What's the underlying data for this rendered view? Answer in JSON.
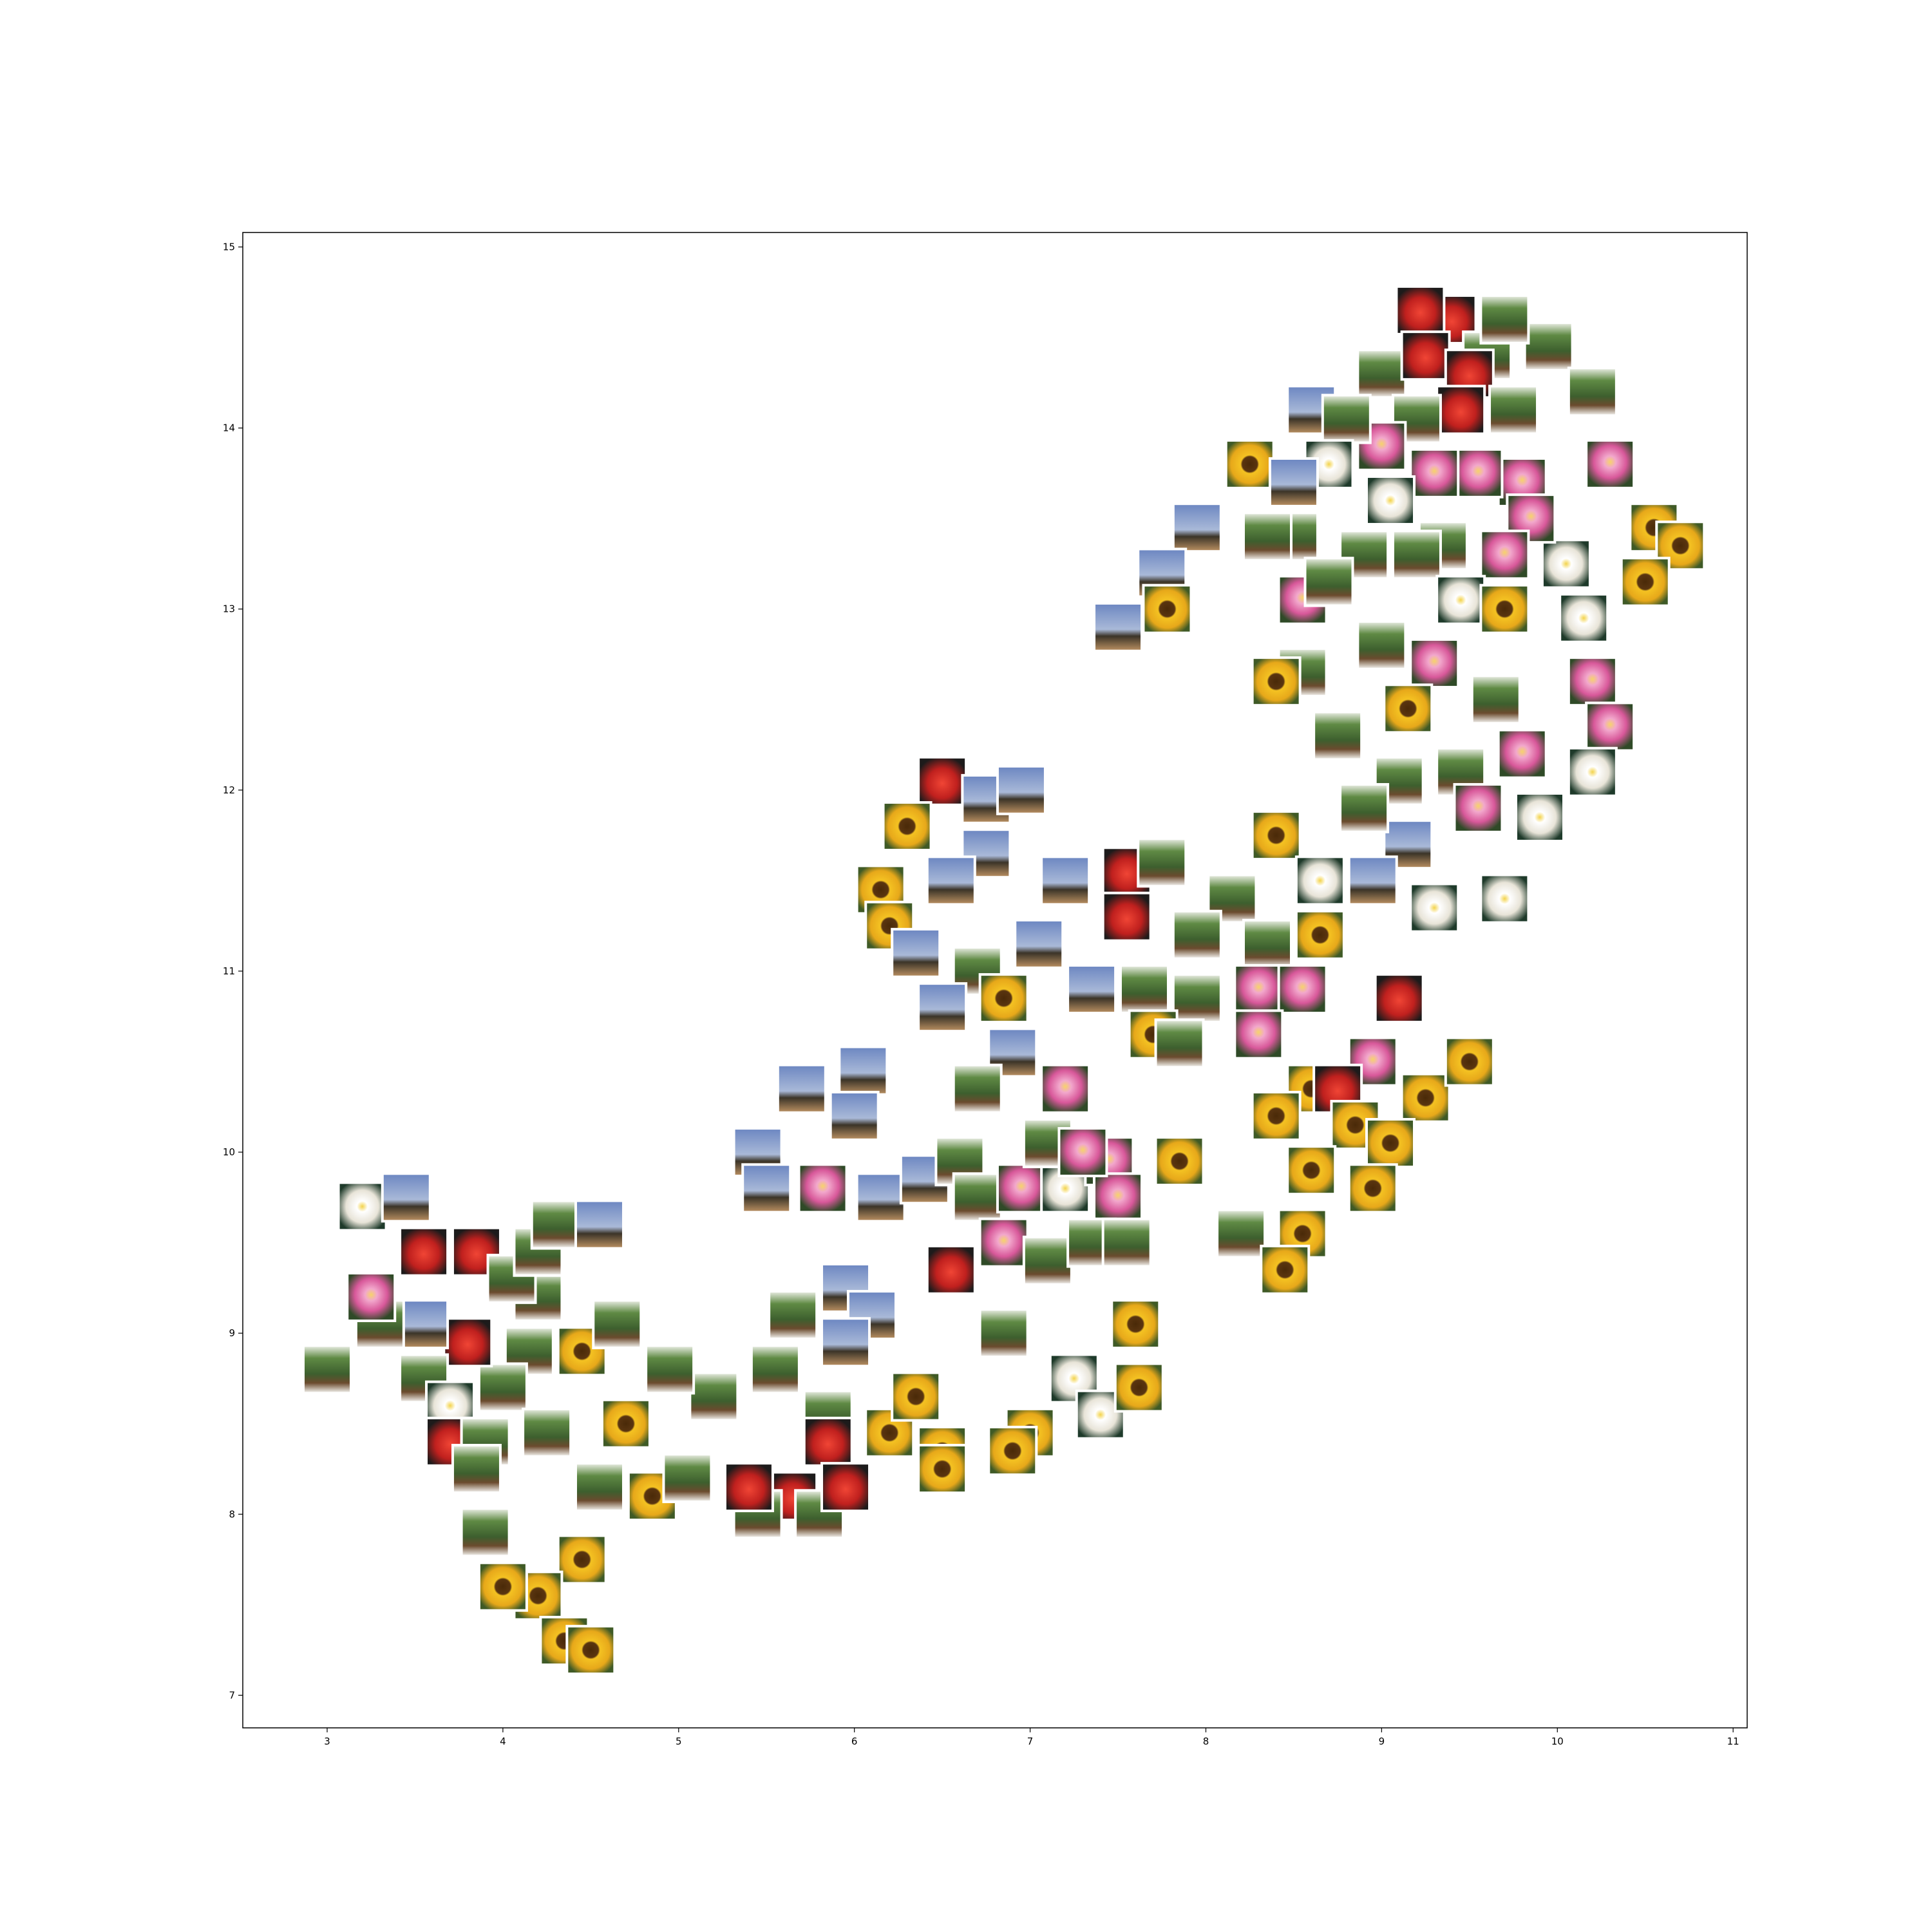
{
  "chart_data": {
    "type": "scatter",
    "title": "",
    "xlabel": "",
    "ylabel": "",
    "xlim": [
      2.52,
      11.08
    ],
    "ylim": [
      6.82,
      15.08
    ],
    "xticks": [
      3,
      4,
      5,
      6,
      7,
      8,
      9,
      10,
      11
    ],
    "yticks": [
      7,
      8,
      9,
      10,
      11,
      12,
      13,
      14,
      15
    ],
    "xtick_labels": [
      "3",
      "4",
      "5",
      "6",
      "7",
      "8",
      "9",
      "10",
      "11"
    ],
    "ytick_labels": [
      "7",
      "8",
      "9",
      "10",
      "11",
      "12",
      "13",
      "14",
      "15"
    ],
    "grid": false,
    "marker": "image-thumbnail",
    "thumbnail_categories": [
      "sunflower",
      "strawberry",
      "bonsai",
      "joshua-tree",
      "lotus",
      "water-lily"
    ],
    "category_colors": {
      "sunflower": "#e8b321",
      "strawberry": "#d42a2a",
      "bonsai": "#4f7a3a",
      "joshua-tree": "#5a6e8c",
      "lotus": "#e27bb0",
      "water-lily": "#eeeadf"
    },
    "points": [
      {
        "x": 9.4,
        "y": 14.6,
        "c": "strawberry"
      },
      {
        "x": 9.22,
        "y": 14.65,
        "c": "strawberry"
      },
      {
        "x": 9.6,
        "y": 14.4,
        "c": "bonsai"
      },
      {
        "x": 9.0,
        "y": 14.3,
        "c": "bonsai"
      },
      {
        "x": 9.25,
        "y": 14.4,
        "c": "strawberry"
      },
      {
        "x": 9.5,
        "y": 14.3,
        "c": "strawberry"
      },
      {
        "x": 9.95,
        "y": 14.45,
        "c": "bonsai"
      },
      {
        "x": 9.7,
        "y": 14.6,
        "c": "bonsai"
      },
      {
        "x": 9.75,
        "y": 14.1,
        "c": "bonsai"
      },
      {
        "x": 9.45,
        "y": 14.1,
        "c": "strawberry"
      },
      {
        "x": 9.2,
        "y": 14.05,
        "c": "bonsai"
      },
      {
        "x": 9.0,
        "y": 13.9,
        "c": "lotus"
      },
      {
        "x": 8.6,
        "y": 14.1,
        "c": "joshua-tree"
      },
      {
        "x": 8.8,
        "y": 14.05,
        "c": "bonsai"
      },
      {
        "x": 10.3,
        "y": 13.8,
        "c": "lotus"
      },
      {
        "x": 10.2,
        "y": 14.2,
        "c": "bonsai"
      },
      {
        "x": 9.8,
        "y": 13.7,
        "c": "lotus"
      },
      {
        "x": 9.55,
        "y": 13.75,
        "c": "lotus"
      },
      {
        "x": 9.3,
        "y": 13.75,
        "c": "lotus"
      },
      {
        "x": 9.05,
        "y": 13.6,
        "c": "water-lily"
      },
      {
        "x": 8.7,
        "y": 13.8,
        "c": "water-lily"
      },
      {
        "x": 8.25,
        "y": 13.8,
        "c": "sunflower"
      },
      {
        "x": 8.5,
        "y": 13.7,
        "c": "joshua-tree"
      },
      {
        "x": 10.55,
        "y": 13.45,
        "c": "sunflower"
      },
      {
        "x": 10.7,
        "y": 13.35,
        "c": "sunflower"
      },
      {
        "x": 10.5,
        "y": 13.15,
        "c": "sunflower"
      },
      {
        "x": 10.05,
        "y": 13.25,
        "c": "water-lily"
      },
      {
        "x": 9.85,
        "y": 13.5,
        "c": "lotus"
      },
      {
        "x": 9.7,
        "y": 13.3,
        "c": "lotus"
      },
      {
        "x": 9.35,
        "y": 13.35,
        "c": "bonsai"
      },
      {
        "x": 9.2,
        "y": 13.3,
        "c": "bonsai"
      },
      {
        "x": 8.9,
        "y": 13.3,
        "c": "bonsai"
      },
      {
        "x": 8.5,
        "y": 13.4,
        "c": "bonsai"
      },
      {
        "x": 7.95,
        "y": 13.45,
        "c": "joshua-tree"
      },
      {
        "x": 7.75,
        "y": 13.2,
        "c": "joshua-tree"
      },
      {
        "x": 7.5,
        "y": 12.9,
        "c": "joshua-tree"
      },
      {
        "x": 7.78,
        "y": 13.0,
        "c": "sunflower"
      },
      {
        "x": 8.35,
        "y": 13.4,
        "c": "bonsai"
      },
      {
        "x": 8.55,
        "y": 13.05,
        "c": "lotus"
      },
      {
        "x": 8.7,
        "y": 13.15,
        "c": "bonsai"
      },
      {
        "x": 9.45,
        "y": 13.05,
        "c": "water-lily"
      },
      {
        "x": 9.7,
        "y": 13.0,
        "c": "sunflower"
      },
      {
        "x": 10.15,
        "y": 12.95,
        "c": "water-lily"
      },
      {
        "x": 9.0,
        "y": 12.8,
        "c": "bonsai"
      },
      {
        "x": 9.3,
        "y": 12.7,
        "c": "lotus"
      },
      {
        "x": 8.55,
        "y": 12.65,
        "c": "bonsai"
      },
      {
        "x": 8.4,
        "y": 12.6,
        "c": "sunflower"
      },
      {
        "x": 9.15,
        "y": 12.45,
        "c": "sunflower"
      },
      {
        "x": 9.65,
        "y": 12.5,
        "c": "bonsai"
      },
      {
        "x": 10.2,
        "y": 12.6,
        "c": "lotus"
      },
      {
        "x": 10.3,
        "y": 12.35,
        "c": "lotus"
      },
      {
        "x": 9.8,
        "y": 12.2,
        "c": "lotus"
      },
      {
        "x": 10.2,
        "y": 12.1,
        "c": "water-lily"
      },
      {
        "x": 8.75,
        "y": 12.3,
        "c": "bonsai"
      },
      {
        "x": 9.1,
        "y": 12.05,
        "c": "bonsai"
      },
      {
        "x": 9.45,
        "y": 12.1,
        "c": "bonsai"
      },
      {
        "x": 9.55,
        "y": 11.9,
        "c": "lotus"
      },
      {
        "x": 9.15,
        "y": 11.7,
        "c": "joshua-tree"
      },
      {
        "x": 9.9,
        "y": 11.85,
        "c": "water-lily"
      },
      {
        "x": 8.9,
        "y": 11.9,
        "c": "bonsai"
      },
      {
        "x": 8.4,
        "y": 11.75,
        "c": "sunflower"
      },
      {
        "x": 8.95,
        "y": 11.5,
        "c": "joshua-tree"
      },
      {
        "x": 8.65,
        "y": 11.5,
        "c": "water-lily"
      },
      {
        "x": 9.7,
        "y": 11.4,
        "c": "water-lily"
      },
      {
        "x": 9.3,
        "y": 11.35,
        "c": "water-lily"
      },
      {
        "x": 6.5,
        "y": 12.05,
        "c": "strawberry"
      },
      {
        "x": 6.75,
        "y": 11.95,
        "c": "joshua-tree"
      },
      {
        "x": 6.95,
        "y": 12.0,
        "c": "joshua-tree"
      },
      {
        "x": 6.3,
        "y": 11.8,
        "c": "sunflower"
      },
      {
        "x": 6.75,
        "y": 11.65,
        "c": "joshua-tree"
      },
      {
        "x": 6.55,
        "y": 11.5,
        "c": "joshua-tree"
      },
      {
        "x": 6.15,
        "y": 11.45,
        "c": "sunflower"
      },
      {
        "x": 6.2,
        "y": 11.25,
        "c": "sunflower"
      },
      {
        "x": 6.35,
        "y": 11.1,
        "c": "joshua-tree"
      },
      {
        "x": 7.2,
        "y": 11.5,
        "c": "joshua-tree"
      },
      {
        "x": 7.55,
        "y": 11.55,
        "c": "strawberry"
      },
      {
        "x": 7.75,
        "y": 11.6,
        "c": "bonsai"
      },
      {
        "x": 7.55,
        "y": 11.3,
        "c": "strawberry"
      },
      {
        "x": 8.15,
        "y": 11.4,
        "c": "bonsai"
      },
      {
        "x": 7.95,
        "y": 11.2,
        "c": "bonsai"
      },
      {
        "x": 8.35,
        "y": 11.15,
        "c": "bonsai"
      },
      {
        "x": 7.05,
        "y": 11.15,
        "c": "joshua-tree"
      },
      {
        "x": 6.7,
        "y": 11.0,
        "c": "bonsai"
      },
      {
        "x": 6.85,
        "y": 10.85,
        "c": "sunflower"
      },
      {
        "x": 6.5,
        "y": 10.8,
        "c": "joshua-tree"
      },
      {
        "x": 7.35,
        "y": 10.9,
        "c": "joshua-tree"
      },
      {
        "x": 7.65,
        "y": 10.9,
        "c": "bonsai"
      },
      {
        "x": 7.95,
        "y": 10.85,
        "c": "bonsai"
      },
      {
        "x": 8.3,
        "y": 10.9,
        "c": "lotus"
      },
      {
        "x": 8.65,
        "y": 11.2,
        "c": "sunflower"
      },
      {
        "x": 8.55,
        "y": 10.9,
        "c": "lotus"
      },
      {
        "x": 9.1,
        "y": 10.85,
        "c": "strawberry"
      },
      {
        "x": 8.3,
        "y": 10.65,
        "c": "lotus"
      },
      {
        "x": 7.7,
        "y": 10.65,
        "c": "sunflower"
      },
      {
        "x": 7.85,
        "y": 10.6,
        "c": "bonsai"
      },
      {
        "x": 6.9,
        "y": 10.55,
        "c": "joshua-tree"
      },
      {
        "x": 7.2,
        "y": 10.35,
        "c": "lotus"
      },
      {
        "x": 6.7,
        "y": 10.35,
        "c": "bonsai"
      },
      {
        "x": 5.7,
        "y": 10.35,
        "c": "joshua-tree"
      },
      {
        "x": 6.05,
        "y": 10.45,
        "c": "joshua-tree"
      },
      {
        "x": 6.0,
        "y": 10.2,
        "c": "joshua-tree"
      },
      {
        "x": 5.45,
        "y": 10.0,
        "c": "joshua-tree"
      },
      {
        "x": 5.5,
        "y": 9.8,
        "c": "joshua-tree"
      },
      {
        "x": 5.82,
        "y": 9.8,
        "c": "lotus"
      },
      {
        "x": 6.15,
        "y": 9.75,
        "c": "joshua-tree"
      },
      {
        "x": 6.4,
        "y": 9.85,
        "c": "joshua-tree"
      },
      {
        "x": 6.6,
        "y": 9.95,
        "c": "bonsai"
      },
      {
        "x": 6.7,
        "y": 9.75,
        "c": "bonsai"
      },
      {
        "x": 6.95,
        "y": 9.8,
        "c": "lotus"
      },
      {
        "x": 7.2,
        "y": 9.8,
        "c": "water-lily"
      },
      {
        "x": 7.45,
        "y": 9.95,
        "c": "lotus"
      },
      {
        "x": 7.5,
        "y": 9.75,
        "c": "lotus"
      },
      {
        "x": 7.85,
        "y": 9.95,
        "c": "sunflower"
      },
      {
        "x": 7.1,
        "y": 10.05,
        "c": "bonsai"
      },
      {
        "x": 7.3,
        "y": 10.0,
        "c": "lotus"
      },
      {
        "x": 8.6,
        "y": 10.35,
        "c": "sunflower"
      },
      {
        "x": 8.95,
        "y": 10.5,
        "c": "lotus"
      },
      {
        "x": 9.25,
        "y": 10.3,
        "c": "sunflower"
      },
      {
        "x": 9.5,
        "y": 10.5,
        "c": "sunflower"
      },
      {
        "x": 8.75,
        "y": 10.35,
        "c": "strawberry"
      },
      {
        "x": 8.4,
        "y": 10.2,
        "c": "sunflower"
      },
      {
        "x": 8.85,
        "y": 10.15,
        "c": "sunflower"
      },
      {
        "x": 9.05,
        "y": 10.05,
        "c": "sunflower"
      },
      {
        "x": 8.6,
        "y": 9.9,
        "c": "sunflower"
      },
      {
        "x": 8.95,
        "y": 9.8,
        "c": "sunflower"
      },
      {
        "x": 8.2,
        "y": 9.55,
        "c": "bonsai"
      },
      {
        "x": 8.55,
        "y": 9.55,
        "c": "sunflower"
      },
      {
        "x": 8.45,
        "y": 9.35,
        "c": "sunflower"
      },
      {
        "x": 6.85,
        "y": 9.5,
        "c": "lotus"
      },
      {
        "x": 7.1,
        "y": 9.4,
        "c": "bonsai"
      },
      {
        "x": 7.35,
        "y": 9.5,
        "c": "bonsai"
      },
      {
        "x": 7.55,
        "y": 9.5,
        "c": "bonsai"
      },
      {
        "x": 6.55,
        "y": 9.35,
        "c": "strawberry"
      },
      {
        "x": 7.6,
        "y": 9.05,
        "c": "sunflower"
      },
      {
        "x": 6.85,
        "y": 9.0,
        "c": "bonsai"
      },
      {
        "x": 7.25,
        "y": 8.75,
        "c": "water-lily"
      },
      {
        "x": 7.4,
        "y": 8.55,
        "c": "water-lily"
      },
      {
        "x": 7.62,
        "y": 8.7,
        "c": "sunflower"
      },
      {
        "x": 7.0,
        "y": 8.45,
        "c": "sunflower"
      },
      {
        "x": 6.9,
        "y": 8.35,
        "c": "sunflower"
      },
      {
        "x": 6.5,
        "y": 8.35,
        "c": "sunflower"
      },
      {
        "x": 6.5,
        "y": 8.25,
        "c": "sunflower"
      },
      {
        "x": 6.2,
        "y": 8.45,
        "c": "sunflower"
      },
      {
        "x": 6.35,
        "y": 8.65,
        "c": "sunflower"
      },
      {
        "x": 5.95,
        "y": 9.25,
        "c": "joshua-tree"
      },
      {
        "x": 5.65,
        "y": 9.1,
        "c": "bonsai"
      },
      {
        "x": 6.1,
        "y": 9.1,
        "c": "joshua-tree"
      },
      {
        "x": 5.95,
        "y": 8.95,
        "c": "joshua-tree"
      },
      {
        "x": 5.55,
        "y": 8.8,
        "c": "bonsai"
      },
      {
        "x": 5.85,
        "y": 8.55,
        "c": "bonsai"
      },
      {
        "x": 5.85,
        "y": 8.4,
        "c": "strawberry"
      },
      {
        "x": 5.65,
        "y": 8.1,
        "c": "strawberry"
      },
      {
        "x": 5.45,
        "y": 8.0,
        "c": "bonsai"
      },
      {
        "x": 5.8,
        "y": 8.0,
        "c": "bonsai"
      },
      {
        "x": 5.95,
        "y": 8.15,
        "c": "strawberry"
      },
      {
        "x": 5.4,
        "y": 8.15,
        "c": "strawberry"
      },
      {
        "x": 5.2,
        "y": 8.65,
        "c": "bonsai"
      },
      {
        "x": 4.95,
        "y": 8.8,
        "c": "bonsai"
      },
      {
        "x": 4.85,
        "y": 8.1,
        "c": "sunflower"
      },
      {
        "x": 5.05,
        "y": 8.2,
        "c": "bonsai"
      },
      {
        "x": 4.55,
        "y": 8.15,
        "c": "bonsai"
      },
      {
        "x": 4.7,
        "y": 8.5,
        "c": "sunflower"
      },
      {
        "x": 4.45,
        "y": 8.9,
        "c": "sunflower"
      },
      {
        "x": 4.65,
        "y": 9.05,
        "c": "bonsai"
      },
      {
        "x": 4.2,
        "y": 9.2,
        "c": "bonsai"
      },
      {
        "x": 4.15,
        "y": 8.9,
        "c": "bonsai"
      },
      {
        "x": 4.0,
        "y": 8.7,
        "c": "bonsai"
      },
      {
        "x": 3.8,
        "y": 8.95,
        "c": "strawberry"
      },
      {
        "x": 3.55,
        "y": 9.05,
        "c": "joshua-tree"
      },
      {
        "x": 3.55,
        "y": 8.75,
        "c": "bonsai"
      },
      {
        "x": 3.7,
        "y": 8.6,
        "c": "water-lily"
      },
      {
        "x": 3.7,
        "y": 8.4,
        "c": "strawberry"
      },
      {
        "x": 3.9,
        "y": 8.4,
        "c": "bonsai"
      },
      {
        "x": 4.25,
        "y": 8.45,
        "c": "bonsai"
      },
      {
        "x": 3.85,
        "y": 8.25,
        "c": "bonsai"
      },
      {
        "x": 3.0,
        "y": 8.8,
        "c": "bonsai"
      },
      {
        "x": 3.3,
        "y": 9.05,
        "c": "bonsai"
      },
      {
        "x": 3.25,
        "y": 9.2,
        "c": "lotus"
      },
      {
        "x": 3.55,
        "y": 9.45,
        "c": "strawberry"
      },
      {
        "x": 3.85,
        "y": 9.45,
        "c": "strawberry"
      },
      {
        "x": 4.05,
        "y": 9.3,
        "c": "bonsai"
      },
      {
        "x": 4.2,
        "y": 9.45,
        "c": "bonsai"
      },
      {
        "x": 4.3,
        "y": 9.6,
        "c": "bonsai"
      },
      {
        "x": 4.55,
        "y": 9.6,
        "c": "joshua-tree"
      },
      {
        "x": 3.2,
        "y": 9.7,
        "c": "water-lily"
      },
      {
        "x": 3.45,
        "y": 9.75,
        "c": "joshua-tree"
      },
      {
        "x": 3.9,
        "y": 7.9,
        "c": "bonsai"
      },
      {
        "x": 4.45,
        "y": 7.75,
        "c": "sunflower"
      },
      {
        "x": 4.2,
        "y": 7.55,
        "c": "sunflower"
      },
      {
        "x": 4.0,
        "y": 7.6,
        "c": "sunflower"
      },
      {
        "x": 4.35,
        "y": 7.3,
        "c": "sunflower"
      },
      {
        "x": 4.5,
        "y": 7.25,
        "c": "sunflower"
      }
    ]
  }
}
